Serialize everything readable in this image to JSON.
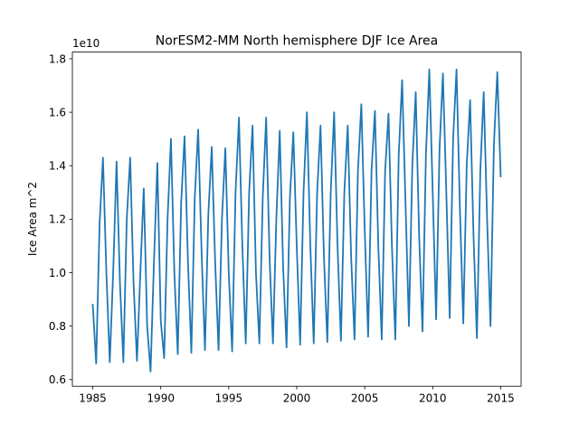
{
  "chart_data": {
    "type": "line",
    "title": "NorESM2-MM North hemisphere DJF Ice Area",
    "xlabel": "",
    "ylabel": "Ice Area m^2",
    "offset_label": "1e10",
    "xlim": [
      1983.5,
      2016.5
    ],
    "ylim": [
      0.575,
      1.825
    ],
    "xticks": [
      1985,
      1990,
      1995,
      2000,
      2005,
      2010,
      2015
    ],
    "xtick_labels": [
      "1985",
      "1990",
      "1995",
      "2000",
      "2005",
      "2010",
      "2015"
    ],
    "yticks": [
      0.6,
      0.8,
      1.0,
      1.2,
      1.4,
      1.6,
      1.8
    ],
    "ytick_labels": [
      "0.6",
      "0.8",
      "1.0",
      "1.2",
      "1.4",
      "1.6",
      "1.8"
    ],
    "grid": false,
    "color": "#1f77b4",
    "series": [
      {
        "x": [
          1985.0,
          1985.25,
          1985.5,
          1985.75,
          1986.0,
          1986.25,
          1986.5,
          1986.75,
          1987.0,
          1987.25,
          1987.5,
          1987.75,
          1988.0,
          1988.25,
          1988.5,
          1988.75,
          1989.0,
          1989.25,
          1989.5,
          1989.75,
          1990.0,
          1990.25,
          1990.5,
          1990.75,
          1991.0,
          1991.25,
          1991.5,
          1991.75,
          1992.0,
          1992.25,
          1992.5,
          1992.75,
          1993.0,
          1993.25,
          1993.5,
          1993.75,
          1994.0,
          1994.25,
          1994.5,
          1994.75,
          1995.0,
          1995.25,
          1995.5,
          1995.75,
          1996.0,
          1996.25,
          1996.5,
          1996.75,
          1997.0,
          1997.25,
          1997.5,
          1997.75,
          1998.0,
          1998.25,
          1998.5,
          1998.75,
          1999.0,
          1999.25,
          1999.5,
          1999.75,
          2000.0,
          2000.25,
          2000.5,
          2000.75,
          2001.0,
          2001.25,
          2001.5,
          2001.75,
          2002.0,
          2002.25,
          2002.5,
          2002.75,
          2003.0,
          2003.25,
          2003.5,
          2003.75,
          2004.0,
          2004.25,
          2004.5,
          2004.75,
          2005.0,
          2005.25,
          2005.5,
          2005.75,
          2006.0,
          2006.25,
          2006.5,
          2006.75,
          2007.0,
          2007.25,
          2007.5,
          2007.75,
          2008.0,
          2008.25,
          2008.5,
          2008.75,
          2009.0,
          2009.25,
          2009.5,
          2009.75,
          2010.0,
          2010.25,
          2010.5,
          2010.75,
          2011.0,
          2011.25,
          2011.5,
          2011.75,
          2012.0,
          2012.25,
          2012.5,
          2012.75,
          2013.0,
          2013.25,
          2013.5,
          2013.75,
          2014.0,
          2014.25,
          2014.5,
          2014.75,
          2015.0
        ],
        "y": [
          0.88,
          0.66,
          1.18,
          1.43,
          1.0,
          0.665,
          1.0,
          1.415,
          0.96,
          0.665,
          1.2,
          1.43,
          0.96,
          0.67,
          1.0,
          1.315,
          0.8,
          0.63,
          1.04,
          1.41,
          0.82,
          0.68,
          1.2,
          1.5,
          1.0,
          0.695,
          1.26,
          1.51,
          1.04,
          0.7,
          1.28,
          1.535,
          1.08,
          0.71,
          1.22,
          1.47,
          1.04,
          0.71,
          1.2,
          1.465,
          1.0,
          0.705,
          1.3,
          1.58,
          1.1,
          0.735,
          1.3,
          1.55,
          1.0,
          0.735,
          1.28,
          1.58,
          1.06,
          0.735,
          1.2,
          1.53,
          1.02,
          0.72,
          1.28,
          1.525,
          1.1,
          0.73,
          1.3,
          1.6,
          1.1,
          0.735,
          1.3,
          1.55,
          1.06,
          0.74,
          1.3,
          1.6,
          1.1,
          0.745,
          1.3,
          1.55,
          1.06,
          0.75,
          1.38,
          1.63,
          1.16,
          0.76,
          1.38,
          1.605,
          1.1,
          0.75,
          1.38,
          1.595,
          1.1,
          0.75,
          1.44,
          1.72,
          1.26,
          0.8,
          1.4,
          1.675,
          1.14,
          0.78,
          1.44,
          1.76,
          1.3,
          0.825,
          1.46,
          1.745,
          1.3,
          0.83,
          1.5,
          1.76,
          1.24,
          0.81,
          1.4,
          1.645,
          1.14,
          0.755,
          1.38,
          1.675,
          1.2,
          0.8,
          1.48,
          1.75,
          1.36
        ]
      }
    ]
  }
}
